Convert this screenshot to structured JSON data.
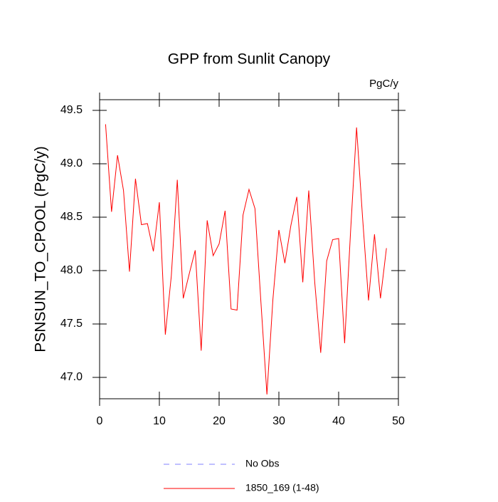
{
  "chart_data": {
    "type": "line",
    "title": "GPP from Sunlit Canopy",
    "units": "PgC/y",
    "ylabel": "PSNSUN_TO_CPOOL  (PgC/y)",
    "x": [
      1,
      2,
      3,
      4,
      5,
      6,
      7,
      8,
      9,
      10,
      11,
      12,
      13,
      14,
      15,
      16,
      17,
      18,
      19,
      20,
      21,
      22,
      23,
      24,
      25,
      26,
      27,
      28,
      29,
      30,
      31,
      32,
      33,
      34,
      35,
      36,
      37,
      38,
      39,
      40,
      41,
      42,
      43,
      44,
      45,
      46,
      47,
      48
    ],
    "series": [
      {
        "name": "1850_169 (1-48)",
        "color": "#ff0000",
        "values": [
          49.37,
          48.55,
          49.08,
          48.75,
          47.99,
          48.86,
          48.43,
          48.44,
          48.18,
          48.64,
          47.4,
          47.95,
          48.85,
          47.74,
          47.97,
          48.19,
          47.25,
          48.47,
          48.14,
          48.25,
          48.56,
          47.64,
          47.63,
          48.52,
          48.76,
          48.58,
          47.7,
          46.84,
          47.73,
          48.38,
          48.07,
          48.42,
          48.69,
          47.89,
          48.75,
          47.89,
          47.23,
          48.09,
          48.29,
          48.3,
          47.32,
          48.37,
          49.34,
          48.5,
          47.72,
          48.34,
          47.74,
          48.21
        ]
      }
    ],
    "legend_extra": [
      {
        "name": "No Obs",
        "color": "#8080ff",
        "dash": true
      }
    ],
    "xlim": [
      0,
      50
    ],
    "xticks": [
      0,
      10,
      20,
      30,
      40,
      50
    ],
    "ylim": [
      46.8,
      49.6
    ],
    "yticks": [
      {
        "value": 47,
        "label": "47.0"
      },
      47.5,
      {
        "value": 48,
        "label": "48.0"
      },
      48.5,
      {
        "value": 49,
        "label": "49.0"
      },
      49.5
    ]
  }
}
